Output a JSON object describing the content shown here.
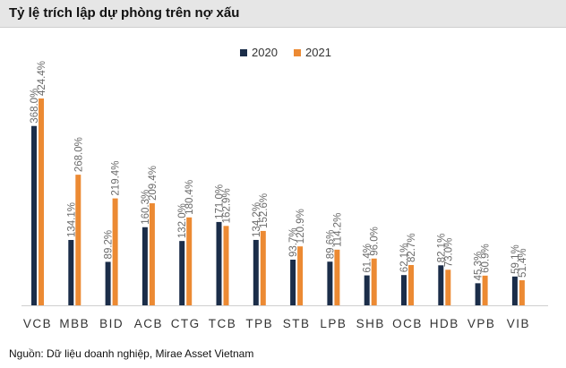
{
  "title": "Tỷ lệ trích lập dự phòng trên nợ xấu",
  "source": "Nguồn: Dữ liệu doanh nghiệp, Mirae Asset Vietnam",
  "colors": {
    "2020": "#1b2d49",
    "2021": "#ec8a33"
  },
  "chart_data": {
    "type": "bar",
    "title": "Tỷ lệ trích lập dự phòng trên nợ xấu",
    "xlabel": "",
    "ylabel": "",
    "legend": "top-center",
    "grid": false,
    "ylim": [
      0,
      424.4
    ],
    "categories": [
      "VCB",
      "MBB",
      "BID",
      "ACB",
      "CTG",
      "TCB",
      "TPB",
      "STB",
      "LPB",
      "SHB",
      "OCB",
      "HDB",
      "VPB",
      "VIB"
    ],
    "series": [
      {
        "name": "2020",
        "values": [
          368.0,
          134.1,
          89.2,
          160.3,
          132.0,
          171.0,
          134.2,
          93.7,
          89.6,
          61.4,
          62.1,
          82.1,
          45.3,
          59.1
        ],
        "labels": [
          "368.0%",
          "134.1%",
          "89.2%",
          "160.3%",
          "132.0%",
          "171.0%",
          "134.2%",
          "93.7%",
          "89.6%",
          "61.4%",
          "62.1%",
          "82.1%",
          "45.3%",
          "59.1%"
        ]
      },
      {
        "name": "2021",
        "values": [
          424.4,
          268.0,
          219.4,
          209.4,
          180.4,
          162.9,
          152.6,
          120.9,
          114.2,
          96.0,
          82.7,
          73.0,
          60.9,
          51.4
        ],
        "labels": [
          "424.4%",
          "268.0%",
          "219.4%",
          "209.4%",
          "180.4%",
          "162.9%",
          "152.6%",
          "120.9%",
          "114.2%",
          "96.0%",
          "82.7%",
          "73.0%",
          "60.9%",
          "51.4%"
        ]
      }
    ]
  }
}
